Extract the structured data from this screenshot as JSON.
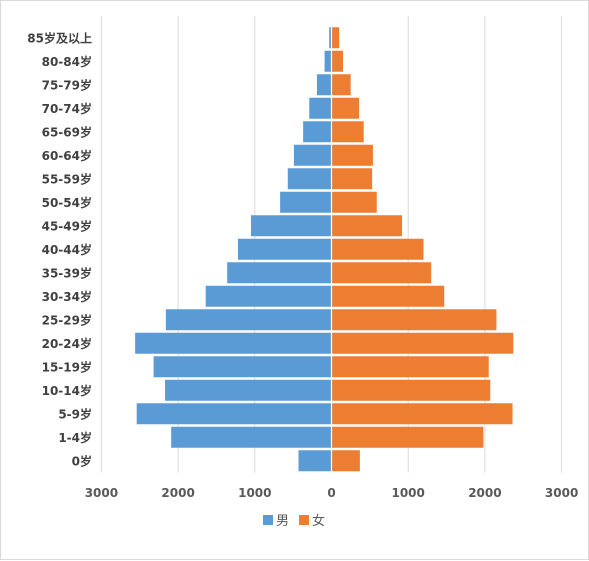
{
  "chart_data": {
    "type": "bar",
    "orientation": "horizontal",
    "layout": "population-pyramid",
    "categories": [
      "85岁及以上",
      "80-84岁",
      "75-79岁",
      "70-74岁",
      "65-69岁",
      "60-64岁",
      "55-59岁",
      "50-54岁",
      "45-49岁",
      "40-44岁",
      "35-39岁",
      "30-34岁",
      "25-29岁",
      "20-24岁",
      "15-19岁",
      "10-14岁",
      "5-9岁",
      "1-4岁",
      "0岁"
    ],
    "series": [
      {
        "name": "男",
        "color": "#5b9bd5",
        "side": "left",
        "values": [
          30,
          90,
          190,
          290,
          370,
          490,
          570,
          670,
          1050,
          1220,
          1360,
          1640,
          2160,
          2560,
          2320,
          2170,
          2540,
          2090,
          430
        ]
      },
      {
        "name": "女",
        "color": "#ed7d31",
        "side": "right",
        "values": [
          100,
          150,
          250,
          360,
          420,
          540,
          530,
          590,
          920,
          1200,
          1300,
          1470,
          2150,
          2370,
          2050,
          2070,
          2360,
          1980,
          370
        ]
      }
    ],
    "xticks": [
      "3000",
      "2000",
      "1000",
      "0",
      "1000",
      "2000",
      "3000"
    ],
    "xlim": [
      -3000,
      3000
    ],
    "grid": "vertical",
    "legend": "bottom-center",
    "title": "",
    "xlabel": "",
    "ylabel": ""
  }
}
